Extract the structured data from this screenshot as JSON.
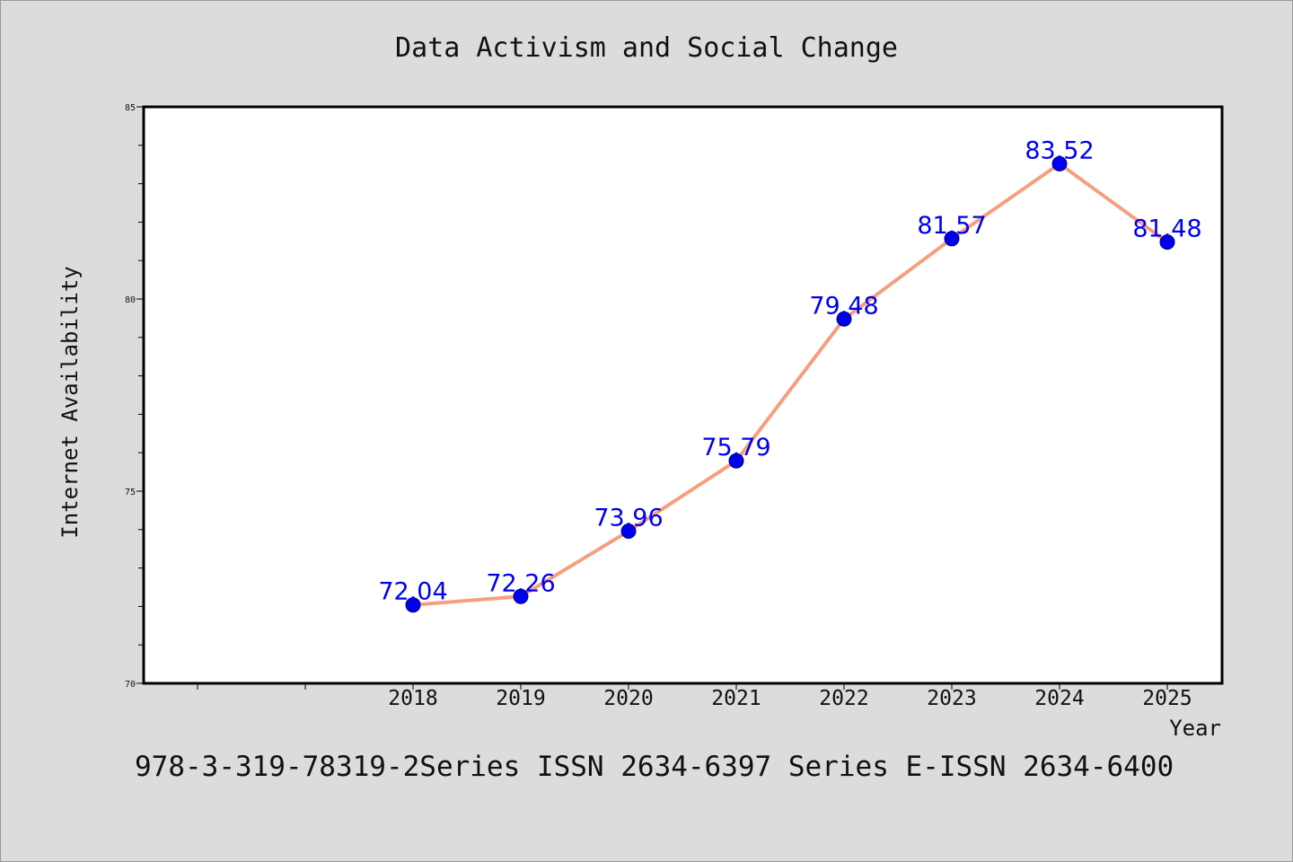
{
  "chart_data": {
    "type": "line",
    "title": "Data Activism and Social Change",
    "xlabel": "Year",
    "ylabel": "Internet Availability",
    "categories": [
      "2018",
      "2019",
      "2020",
      "2021",
      "2022",
      "2023",
      "2024",
      "2025"
    ],
    "series": [
      {
        "values": [
          72.04,
          72.26,
          73.96,
          75.79,
          79.48,
          81.57,
          83.52,
          81.48
        ],
        "data_labels": [
          "72.04",
          "72.26",
          "73.96",
          "75.79",
          "79.48",
          "81.57",
          "83.52",
          "81.48"
        ]
      }
    ],
    "ylim": [
      70,
      85
    ],
    "yticks": [
      70,
      75,
      80,
      85
    ],
    "ytick_labels": [
      "70",
      "75",
      "80",
      "85"
    ],
    "grid": false,
    "line_color": "#f4a07e",
    "marker_color": "#0000ee",
    "label_color": "#0000ee"
  },
  "footer": {
    "text": "978-3-319-78319-2Series ISSN 2634-6397 Series E-ISSN 2634-6400"
  }
}
